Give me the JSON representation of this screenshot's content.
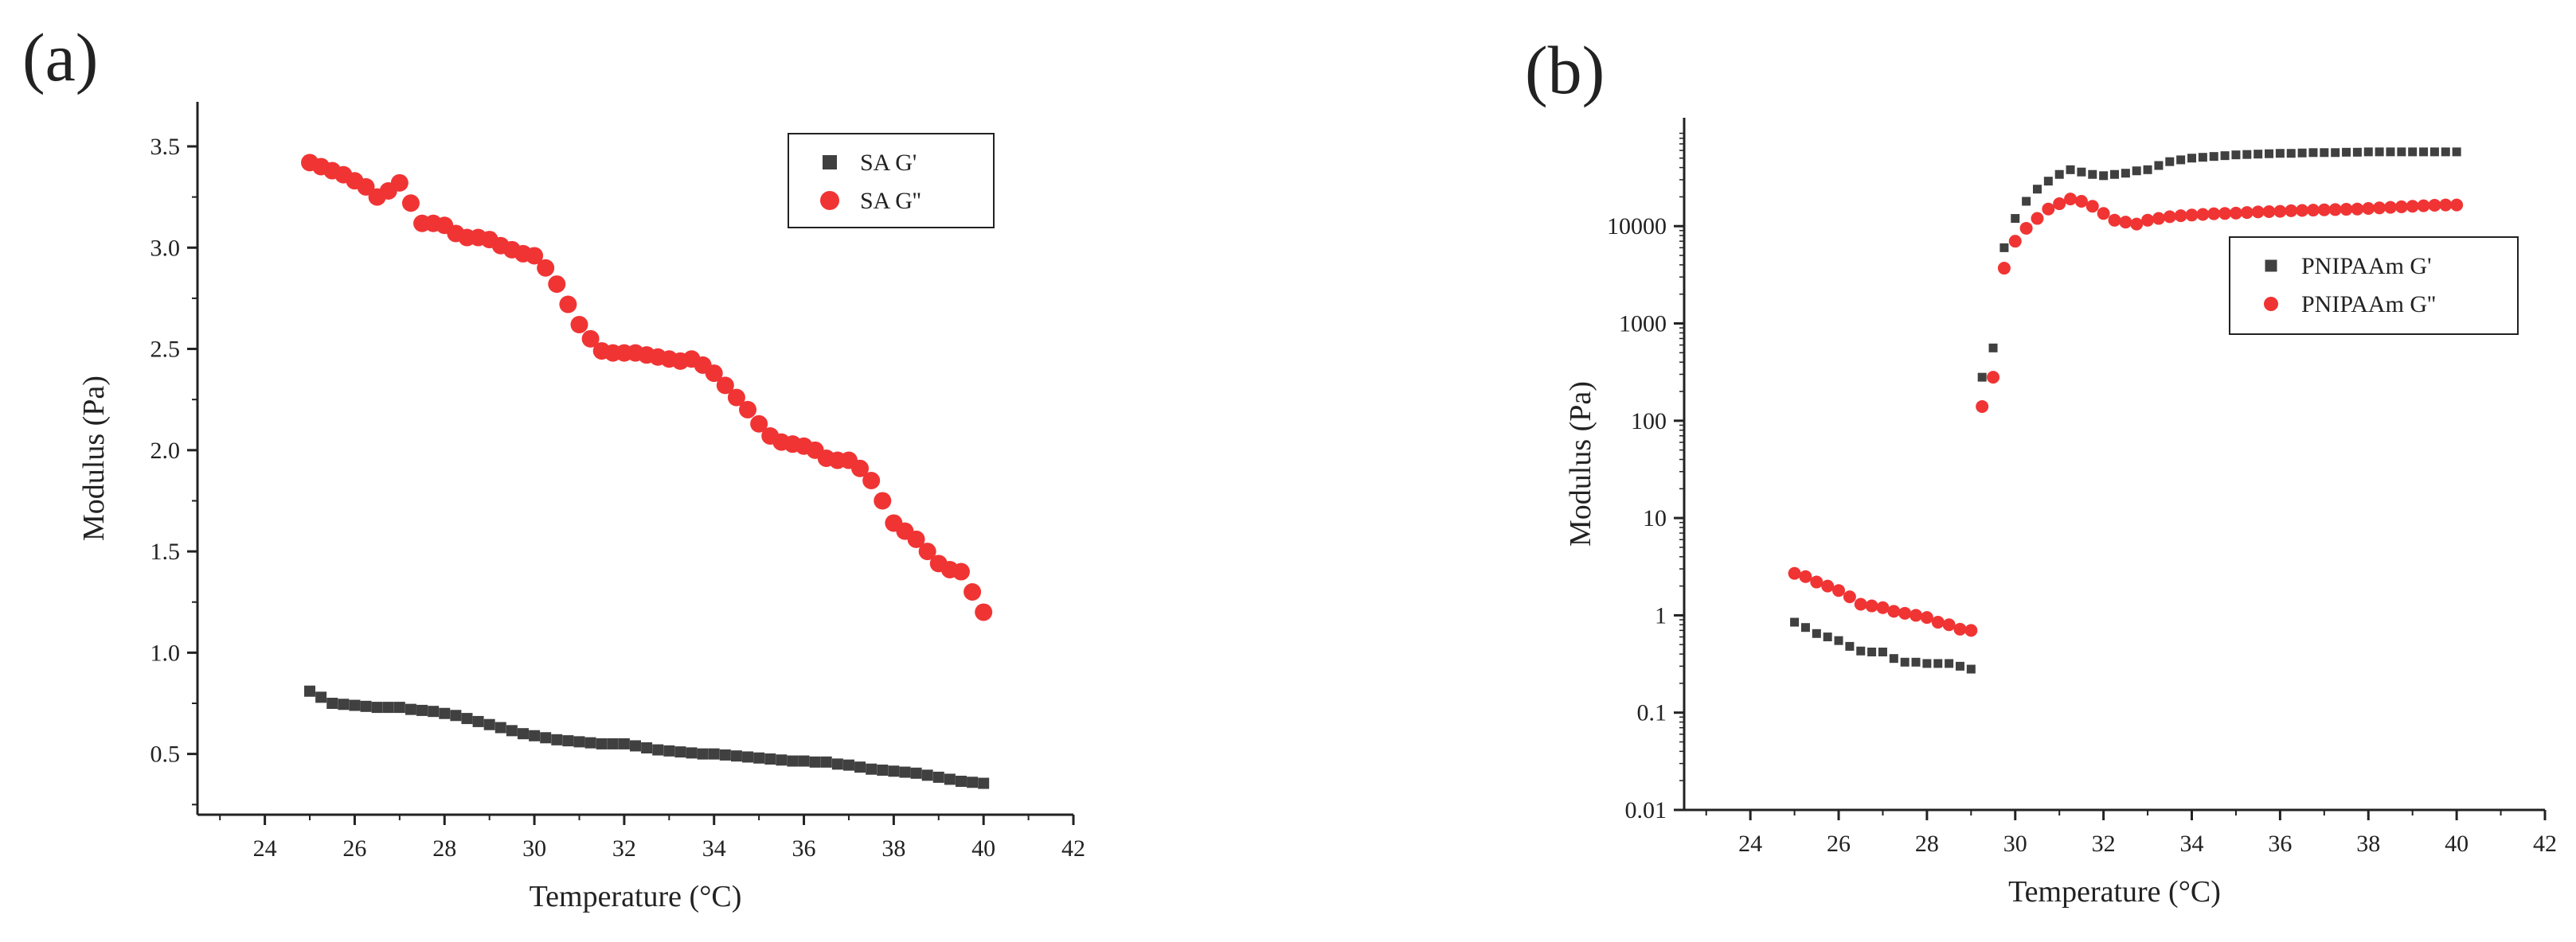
{
  "panel_labels": [
    "(a)",
    "(b)"
  ],
  "colors": {
    "g_prime": "#404040",
    "g_double_prime": "#f03434",
    "axis": "#222222"
  },
  "chart_data": [
    {
      "type": "scatter",
      "title": "",
      "xlabel": "Temperature (°C)",
      "ylabel": "Modulus (Pa)",
      "xlim": [
        22.5,
        42
      ],
      "ylim": [
        0.2,
        3.72
      ],
      "yscale": "linear",
      "xticks": [
        24,
        26,
        28,
        30,
        32,
        34,
        36,
        38,
        40,
        42
      ],
      "yticks": [
        0.5,
        1.0,
        1.5,
        2.0,
        2.5,
        3.0,
        3.5
      ],
      "ytick_labels": [
        "0.5",
        "1.0",
        "1.5",
        "2.0",
        "2.5",
        "3.0",
        "3.5"
      ],
      "legend": "top-right",
      "series": [
        {
          "name": "SA G'",
          "marker": "square",
          "x": [
            25.0,
            25.25,
            25.5,
            25.75,
            26.0,
            26.25,
            26.5,
            26.75,
            27.0,
            27.25,
            27.5,
            27.75,
            28.0,
            28.25,
            28.5,
            28.75,
            29.0,
            29.25,
            29.5,
            29.75,
            30.0,
            30.25,
            30.5,
            30.75,
            31.0,
            31.25,
            31.5,
            31.75,
            32.0,
            32.25,
            32.5,
            32.75,
            33.0,
            33.25,
            33.5,
            33.75,
            34.0,
            34.25,
            34.5,
            34.75,
            35.0,
            35.25,
            35.5,
            35.75,
            36.0,
            36.25,
            36.5,
            36.75,
            37.0,
            37.25,
            37.5,
            37.75,
            38.0,
            38.25,
            38.5,
            38.75,
            39.0,
            39.25,
            39.5,
            39.75,
            40.0
          ],
          "y": [
            0.81,
            0.78,
            0.75,
            0.745,
            0.74,
            0.735,
            0.73,
            0.73,
            0.73,
            0.72,
            0.715,
            0.71,
            0.7,
            0.69,
            0.675,
            0.66,
            0.645,
            0.63,
            0.615,
            0.6,
            0.59,
            0.58,
            0.57,
            0.565,
            0.56,
            0.555,
            0.55,
            0.55,
            0.55,
            0.54,
            0.53,
            0.52,
            0.515,
            0.51,
            0.505,
            0.5,
            0.5,
            0.495,
            0.49,
            0.485,
            0.48,
            0.475,
            0.47,
            0.465,
            0.465,
            0.46,
            0.46,
            0.45,
            0.445,
            0.435,
            0.425,
            0.42,
            0.415,
            0.41,
            0.405,
            0.395,
            0.385,
            0.375,
            0.365,
            0.36,
            0.355
          ]
        },
        {
          "name": "SA G''",
          "marker": "circle",
          "x": [
            25.0,
            25.25,
            25.5,
            25.75,
            26.0,
            26.25,
            26.5,
            26.75,
            27.0,
            27.25,
            27.5,
            27.75,
            28.0,
            28.25,
            28.5,
            28.75,
            29.0,
            29.25,
            29.5,
            29.75,
            30.0,
            30.25,
            30.5,
            30.75,
            31.0,
            31.25,
            31.5,
            31.75,
            32.0,
            32.25,
            32.5,
            32.75,
            33.0,
            33.25,
            33.5,
            33.75,
            34.0,
            34.25,
            34.5,
            34.75,
            35.0,
            35.25,
            35.5,
            35.75,
            36.0,
            36.25,
            36.5,
            36.75,
            37.0,
            37.25,
            37.5,
            37.75,
            38.0,
            38.25,
            38.5,
            38.75,
            39.0,
            39.25,
            39.5,
            39.75,
            40.0
          ],
          "y": [
            3.42,
            3.4,
            3.38,
            3.36,
            3.33,
            3.3,
            3.25,
            3.28,
            3.32,
            3.22,
            3.12,
            3.12,
            3.11,
            3.07,
            3.05,
            3.05,
            3.04,
            3.01,
            2.99,
            2.97,
            2.96,
            2.9,
            2.82,
            2.72,
            2.62,
            2.55,
            2.49,
            2.48,
            2.48,
            2.48,
            2.47,
            2.46,
            2.45,
            2.44,
            2.45,
            2.42,
            2.38,
            2.32,
            2.26,
            2.2,
            2.13,
            2.07,
            2.04,
            2.03,
            2.02,
            2.0,
            1.96,
            1.95,
            1.95,
            1.91,
            1.85,
            1.75,
            1.64,
            1.6,
            1.56,
            1.5,
            1.44,
            1.41,
            1.4,
            1.3,
            1.2
          ]
        }
      ]
    },
    {
      "type": "scatter",
      "title": "",
      "xlabel": "Temperature (°C)",
      "ylabel": "Modulus (Pa)",
      "xlim": [
        22.5,
        42
      ],
      "ylim": [
        0.01,
        130000
      ],
      "yscale": "log",
      "xticks": [
        24,
        26,
        28,
        30,
        32,
        34,
        36,
        38,
        40,
        42
      ],
      "yticks": [
        0.01,
        0.1,
        1,
        10,
        100,
        1000,
        10000
      ],
      "ytick_labels": [
        "0.01",
        "0.1",
        "1",
        "10",
        "100",
        "1000",
        "10000"
      ],
      "legend": "center-right",
      "series": [
        {
          "name": "PNIPAAm G'",
          "marker": "square",
          "x": [
            25.0,
            25.25,
            25.5,
            25.75,
            26.0,
            26.25,
            26.5,
            26.75,
            27.0,
            27.25,
            27.5,
            27.75,
            28.0,
            28.25,
            28.5,
            28.75,
            29.0,
            29.25,
            29.5,
            29.75,
            30.0,
            30.25,
            30.5,
            30.75,
            31.0,
            31.25,
            31.5,
            31.75,
            32.0,
            32.25,
            32.5,
            32.75,
            33.0,
            33.25,
            33.5,
            33.75,
            34.0,
            34.25,
            34.5,
            34.75,
            35.0,
            35.25,
            35.5,
            35.75,
            36.0,
            36.25,
            36.5,
            36.75,
            37.0,
            37.25,
            37.5,
            37.75,
            38.0,
            38.25,
            38.5,
            38.75,
            39.0,
            39.25,
            39.5,
            39.75,
            40.0
          ],
          "y": [
            0.85,
            0.75,
            0.65,
            0.6,
            0.55,
            0.48,
            0.43,
            0.42,
            0.42,
            0.36,
            0.33,
            0.33,
            0.32,
            0.32,
            0.32,
            0.3,
            0.28,
            280,
            560,
            6000,
            12000,
            18000,
            24000,
            29000,
            34000,
            38000,
            36000,
            34000,
            33000,
            34000,
            35000,
            37000,
            38000,
            42000,
            46000,
            48000,
            50000,
            51000,
            52000,
            53000,
            54000,
            54500,
            55000,
            55500,
            56000,
            56000,
            56500,
            57000,
            57000,
            57000,
            57500,
            57500,
            58000,
            58000,
            58000,
            58000,
            58000,
            58000,
            58000,
            58000,
            58000
          ]
        },
        {
          "name": "PNIPAAm G''",
          "marker": "circle",
          "x": [
            25.0,
            25.25,
            25.5,
            25.75,
            26.0,
            26.25,
            26.5,
            26.75,
            27.0,
            27.25,
            27.5,
            27.75,
            28.0,
            28.25,
            28.5,
            28.75,
            29.0,
            29.25,
            29.5,
            29.75,
            30.0,
            30.25,
            30.5,
            30.75,
            31.0,
            31.25,
            31.5,
            31.75,
            32.0,
            32.25,
            32.5,
            32.75,
            33.0,
            33.25,
            33.5,
            33.75,
            34.0,
            34.25,
            34.5,
            34.75,
            35.0,
            35.25,
            35.5,
            35.75,
            36.0,
            36.25,
            36.5,
            36.75,
            37.0,
            37.25,
            37.5,
            37.75,
            38.0,
            38.25,
            38.5,
            38.75,
            39.0,
            39.25,
            39.5,
            39.75,
            40.0
          ],
          "y": [
            2.7,
            2.5,
            2.2,
            2.0,
            1.8,
            1.55,
            1.3,
            1.25,
            1.2,
            1.1,
            1.05,
            1.0,
            0.95,
            0.85,
            0.8,
            0.72,
            0.7,
            140,
            280,
            3700,
            7000,
            9500,
            12000,
            15000,
            17000,
            19000,
            18000,
            16000,
            13500,
            11500,
            11000,
            10500,
            11500,
            12000,
            12500,
            12800,
            13000,
            13200,
            13400,
            13500,
            13600,
            13800,
            14000,
            14100,
            14200,
            14400,
            14500,
            14600,
            14700,
            14800,
            14900,
            15000,
            15200,
            15400,
            15600,
            15800,
            16000,
            16200,
            16400,
            16500,
            16500
          ]
        }
      ]
    }
  ]
}
